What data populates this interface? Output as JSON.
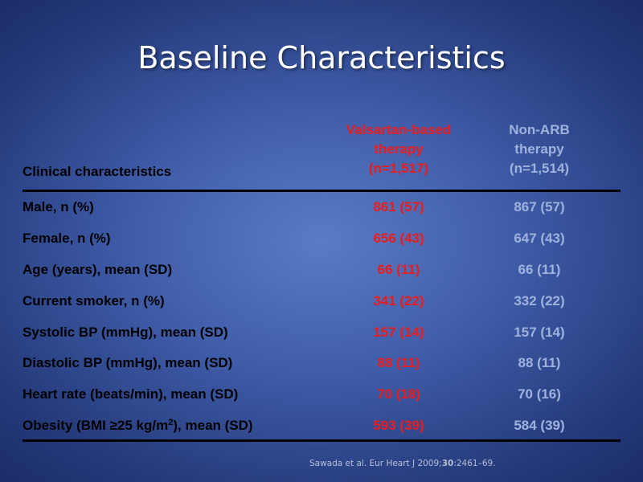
{
  "slide": {
    "title": "Baseline Characteristics"
  },
  "table": {
    "header": {
      "clinical": "Clinical characteristics",
      "valsartan": [
        "Valsartan-based",
        "therapy",
        "(n=1,517)"
      ],
      "non_arb": [
        "Non-ARB",
        "therapy",
        "(n=1,514)"
      ]
    },
    "rows": [
      {
        "label": "Male, n (%)",
        "valsartan": "861 (57)",
        "non_arb": "867 (57)"
      },
      {
        "label": "Female, n (%)",
        "valsartan": "656 (43)",
        "non_arb": "647 (43)"
      },
      {
        "label": "Age (years), mean (SD)",
        "valsartan": "66 (11)",
        "non_arb": "66 (11)"
      },
      {
        "label": "Current smoker, n (%)",
        "valsartan": "341 (22)",
        "non_arb": "332 (22)"
      },
      {
        "label": "Systolic BP (mmHg), mean (SD)",
        "valsartan": "157 (14)",
        "non_arb": "157 (14)"
      },
      {
        "label": "Diastolic BP (mmHg), mean (SD)",
        "valsartan": "88 (11)",
        "non_arb": "88 (11)"
      },
      {
        "label": "Heart rate (beats/min), mean (SD)",
        "valsartan": "70 (18)",
        "non_arb": "70 (16)"
      },
      {
        "label_pre": "Obesity (BMI ≥25 kg/m",
        "label_sup": "2",
        "label_post": "), mean (SD)",
        "valsartan": "593 (39)",
        "non_arb": "584 (39)"
      }
    ]
  },
  "citation": {
    "pre": "Sawada et al. Eur Heart J 2009;",
    "volume": "30",
    "post": ":2461–69."
  },
  "colors": {
    "valsartan": "#ee1b1b",
    "non_arb": "#9fb2de",
    "background": "#3f5ca8"
  }
}
